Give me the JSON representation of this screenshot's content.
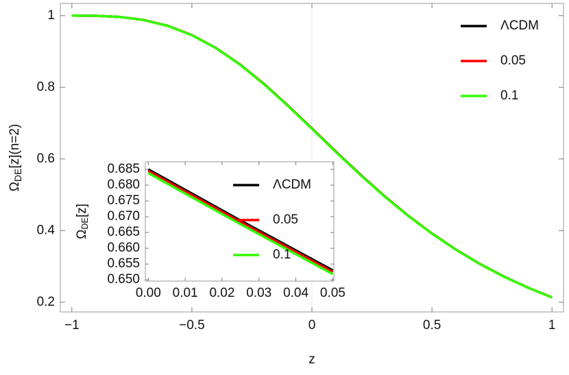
{
  "chart_data": [
    {
      "type": "line",
      "x_label": "z",
      "y_label": {
        "base": "Ω",
        "sub": "DE",
        "rest": "[z](n=2)"
      },
      "x": [
        -1.0,
        -0.9,
        -0.8,
        -0.7,
        -0.6,
        -0.5,
        -0.4,
        -0.3,
        -0.2,
        -0.1,
        0.0,
        0.1,
        0.2,
        0.3,
        0.4,
        0.5,
        0.6,
        0.7,
        0.8,
        0.9,
        1.0
      ],
      "series": [
        {
          "name": "ΛCDM",
          "color": "#000000",
          "values": [
            1.0,
            0.9995,
            0.9963,
            0.9877,
            0.9714,
            0.9456,
            0.9097,
            0.8638,
            0.8094,
            0.7489,
            0.685,
            0.6203,
            0.5572,
            0.4974,
            0.4421,
            0.3919,
            0.3468,
            0.3068,
            0.2716,
            0.2407,
            0.2137
          ]
        },
        {
          "name": "0.05",
          "color": "#ff0000",
          "values": [
            1.0,
            0.9995,
            0.9963,
            0.9876,
            0.9713,
            0.9455,
            0.9095,
            0.8635,
            0.809,
            0.7484,
            0.6845,
            0.6198,
            0.5567,
            0.497,
            0.4418,
            0.3916,
            0.3466,
            0.3066,
            0.2714,
            0.2406,
            0.2136
          ]
        },
        {
          "name": "0.1",
          "color": "#33ff00",
          "values": [
            1.0,
            0.9995,
            0.9962,
            0.9875,
            0.9711,
            0.9452,
            0.9092,
            0.8631,
            0.8085,
            0.7478,
            0.6838,
            0.6191,
            0.5561,
            0.4964,
            0.4413,
            0.3912,
            0.3463,
            0.3064,
            0.2712,
            0.2404,
            0.2135
          ]
        }
      ],
      "xlim": [
        -1.048,
        1.048
      ],
      "ylim": [
        0.173,
        1.034
      ],
      "xticks": [
        -1.0,
        -0.5,
        0.0,
        0.5,
        1.0
      ],
      "yticks": [
        0.2,
        0.4,
        0.6,
        0.8,
        1.0
      ],
      "legend": "upper right"
    },
    {
      "type": "line",
      "y_label": {
        "base": "Ω",
        "sub": "DE",
        "rest": "[z]"
      },
      "x": [
        0.0,
        0.025,
        0.05
      ],
      "series": [
        {
          "name": "ΛCDM",
          "color": "#000000",
          "values": [
            0.685,
            0.6688,
            0.653
          ]
        },
        {
          "name": "0.05",
          "color": "#ff0000",
          "values": [
            0.6845,
            0.6683,
            0.6525
          ]
        },
        {
          "name": "0.1",
          "color": "#33ff00",
          "values": [
            0.6838,
            0.6676,
            0.6518
          ]
        }
      ],
      "xlim": [
        -0.0008,
        0.0503
      ],
      "ylim": [
        0.6496,
        0.6874
      ],
      "xticks": [
        {
          "value": 0.0,
          "label": "0.00"
        },
        {
          "value": 0.01,
          "label": "0.01"
        },
        {
          "value": 0.02,
          "label": "0.02"
        },
        {
          "value": 0.03,
          "label": "0.03"
        },
        {
          "value": 0.04,
          "label": "0.04"
        },
        {
          "value": 0.05,
          "label": "0.05"
        }
      ],
      "yticks": [
        {
          "value": 0.65,
          "label": "0.650"
        },
        0.655,
        {
          "value": 0.66,
          "label": "0.660"
        },
        0.665,
        {
          "value": 0.67,
          "label": "0.670"
        },
        0.675,
        {
          "value": 0.68,
          "label": "0.680"
        },
        0.685
      ],
      "legend": "center right"
    }
  ]
}
